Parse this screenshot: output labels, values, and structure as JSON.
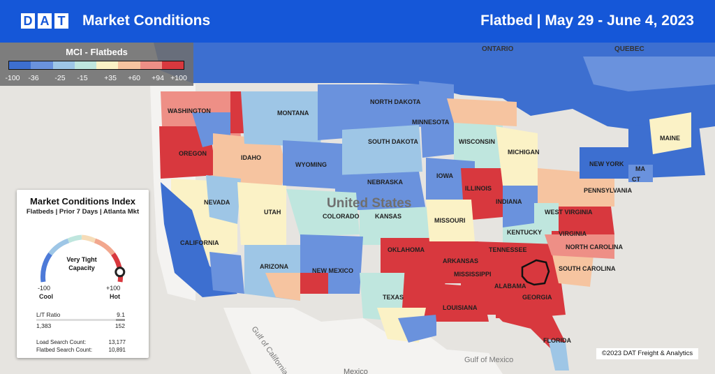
{
  "header": {
    "logo_letters": [
      "D",
      "A",
      "T"
    ],
    "title": "Market Conditions",
    "subtitle": "Flatbed  |  May 29 - June 4, 2023"
  },
  "legend": {
    "title": "MCI - Flatbeds",
    "ticks": [
      "-100",
      "-36",
      "-25",
      "-15",
      "+35",
      "+60",
      "+94",
      "+100"
    ],
    "colors": [
      "#3d6fd0",
      "#6a92dd",
      "#9ec6e6",
      "#bfe6de",
      "#fbf2c6",
      "#f6c4a0",
      "#ee8f86",
      "#d8383e"
    ]
  },
  "colors": {
    "header_bg": "#1557d8",
    "cool_dark": "#3d6fd0",
    "cool": "#6a92dd",
    "light_blue": "#9ec6e6",
    "mint": "#bfe6de",
    "neutral": "#fbf2c6",
    "peach": "#f6c4a0",
    "salmon": "#ee8f86",
    "hot": "#d8383e",
    "water": "#e6e4e0",
    "land_outside": "#f4f3f1",
    "selected_market_outline": "#111111"
  },
  "map_labels": {
    "countries": [
      "United States"
    ],
    "provinces": [
      "ONTARIO",
      "QUEBEC"
    ],
    "states": [
      "WASHINGTON",
      "OREGON",
      "IDAHO",
      "MONTANA",
      "NORTH DAKOTA",
      "SOUTH DAKOTA",
      "WYOMING",
      "NEBRASKA",
      "NEVADA",
      "UTAH",
      "COLORADO",
      "KANSAS",
      "CALIFORNIA",
      "ARIZONA",
      "NEW MEXICO",
      "OKLAHOMA",
      "TEXAS",
      "MINNESOTA",
      "WISCONSIN",
      "IOWA",
      "ILLINOIS",
      "MISSOURI",
      "MICHIGAN",
      "INDIANA",
      "ARKANSAS",
      "MISSISSIPPI",
      "LOUISIANA",
      "ALABAMA",
      "GEORGIA",
      "TENNESSEE",
      "KENTUCKY",
      "WEST VIRGINIA",
      "VIRGINIA",
      "NORTH CAROLINA",
      "SOUTH CAROLINA",
      "FLORIDA",
      "PENNSYLVANIA",
      "NEW YORK",
      "MAINE",
      "MA",
      "CT"
    ],
    "water": [
      "Gulf of California",
      "Gulf of Mexico"
    ],
    "others": [
      "Mexico"
    ]
  },
  "card": {
    "title": "Market Conditions Index",
    "subtitle": "Flatbeds | Prior 7 Days | Atlanta Mkt",
    "gauge": {
      "label": "Very Tight Capacity",
      "level": 0.97,
      "min": "-100",
      "max": "+100",
      "min_label": "Cool",
      "max_label": "Hot"
    },
    "lt_ratio": {
      "label": "L/T Ratio",
      "value": "9.1",
      "loads": "1,383",
      "trucks": "152"
    },
    "load_search": {
      "label": "Load Search Count:",
      "value": "13,177"
    },
    "flatbed_search": {
      "label": "Flatbed Search Count:",
      "value": "10,891"
    }
  },
  "copyright": "©2023 DAT Freight & Analytics"
}
